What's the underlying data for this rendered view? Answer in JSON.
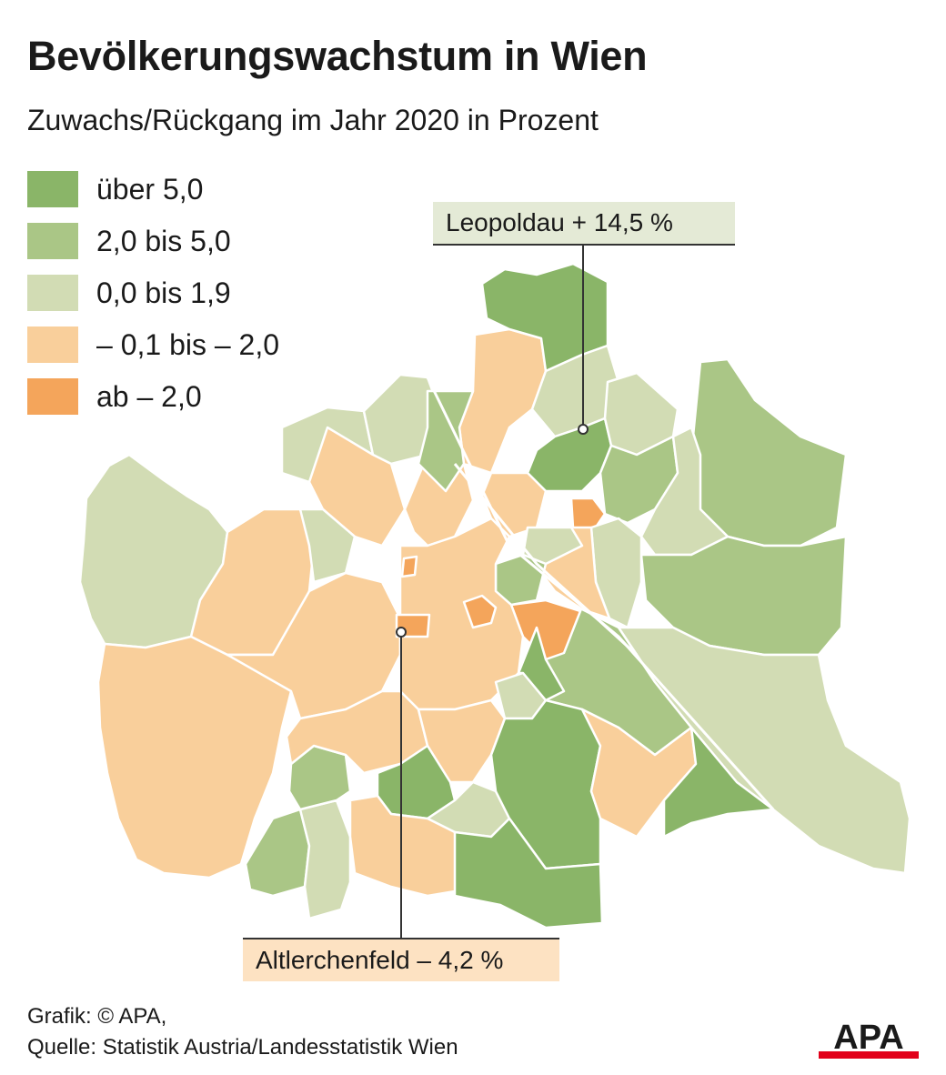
{
  "title": "Bevölkerungswachstum in Wien",
  "subtitle": "Zuwachs/Rückgang im Jahr 2020 in Prozent",
  "legend": {
    "items": [
      {
        "label": "über 5,0",
        "color": "#8ab568"
      },
      {
        "label": "2,0 bis 5,0",
        "color": "#aac686"
      },
      {
        "label": "0,0 bis 1,9",
        "color": "#d2dcb4"
      },
      {
        "label": "– 0,1 bis – 2,0",
        "color": "#f9cf9b"
      },
      {
        "label": "ab – 2,0",
        "color": "#f4a55b"
      }
    ]
  },
  "callouts": {
    "leopoldau": {
      "label": "Leopoldau + 14,5 %",
      "category": "über 5,0"
    },
    "altlerchenfeld": {
      "label": "Altlerchenfeld – 4,2 %",
      "category": "ab – 2,0"
    }
  },
  "footer": {
    "credit": "Grafik: © APA,",
    "source": "Quelle: Statistik Austria/Landesstatistik Wien"
  },
  "logo": {
    "text": "APA",
    "accent_color": "#e2001a"
  }
}
